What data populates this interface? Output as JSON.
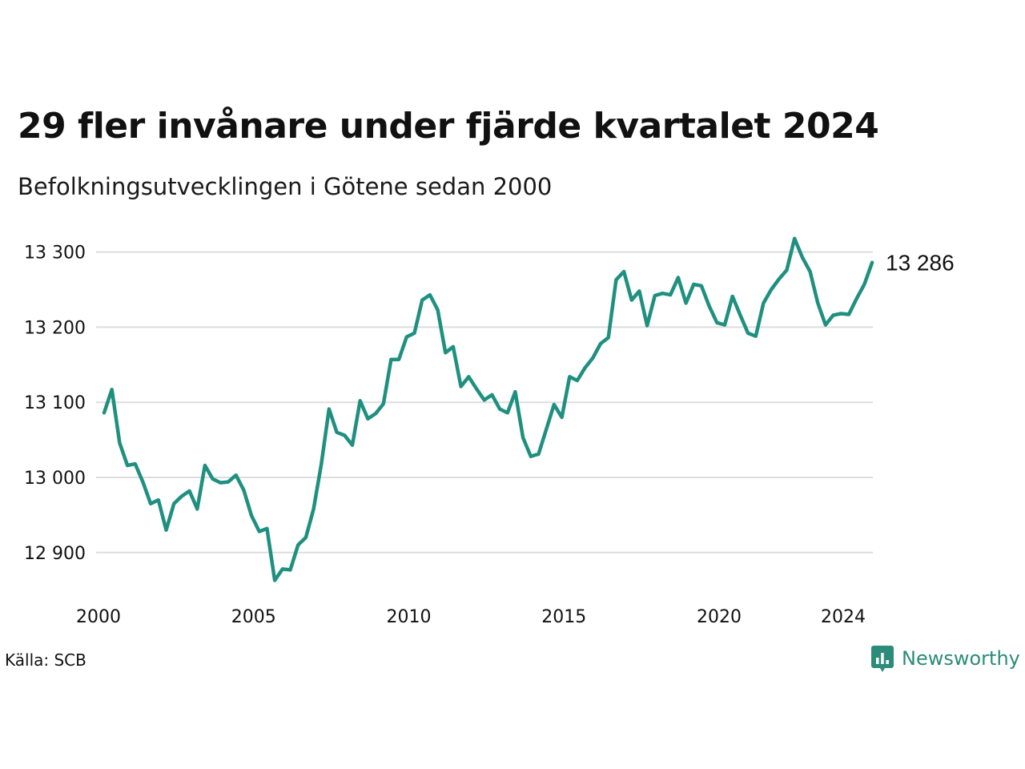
{
  "title": "29 fler invånare under fjärde kvartalet 2024",
  "subtitle": "Befolkningsutvecklingen i Götene sedan 2000",
  "source": "Källa: SCB",
  "brand": {
    "name": "Newsworthy",
    "icon": "newsworthy-logo-icon",
    "color": "#2b8c79"
  },
  "colors": {
    "line": "#1f9080",
    "grid": "#dddddd",
    "text": "#111111"
  },
  "chart_data": {
    "type": "line",
    "title": "29 fler invånare under fjärde kvartalet 2024",
    "subtitle": "Befolkningsutvecklingen i Götene sedan 2000",
    "xlabel": "",
    "ylabel": "",
    "xlim": [
      2000,
      2025
    ],
    "ylim": [
      12850,
      13330
    ],
    "x_ticks": [
      2000,
      2005,
      2010,
      2015,
      2020,
      2024
    ],
    "x_tick_labels": [
      "2000",
      "2005",
      "2010",
      "2015",
      "2020",
      "2024"
    ],
    "y_ticks": [
      12900,
      13000,
      13100,
      13200,
      13300
    ],
    "y_tick_labels": [
      "12 900",
      "13 000",
      "13 100",
      "13 200",
      "13 300"
    ],
    "grid": "horizontal",
    "legend": "none",
    "end_label": "13 286",
    "x": [
      2000.0,
      2000.25,
      2000.5,
      2000.75,
      2001.0,
      2001.25,
      2001.5,
      2001.75,
      2002.0,
      2002.25,
      2002.5,
      2002.75,
      2003.0,
      2003.25,
      2003.5,
      2003.75,
      2004.0,
      2004.25,
      2004.5,
      2004.75,
      2005.0,
      2005.25,
      2005.5,
      2005.75,
      2006.0,
      2006.25,
      2006.5,
      2006.75,
      2007.0,
      2007.25,
      2007.5,
      2007.75,
      2008.0,
      2008.25,
      2008.5,
      2008.75,
      2009.0,
      2009.25,
      2009.5,
      2009.75,
      2010.0,
      2010.25,
      2010.5,
      2010.75,
      2011.0,
      2011.25,
      2011.5,
      2011.75,
      2012.0,
      2012.25,
      2012.5,
      2012.75,
      2013.0,
      2013.25,
      2013.5,
      2013.75,
      2014.0,
      2014.25,
      2014.5,
      2014.75,
      2015.0,
      2015.25,
      2015.5,
      2015.75,
      2016.0,
      2016.25,
      2016.5,
      2016.75,
      2017.0,
      2017.25,
      2017.5,
      2017.75,
      2018.0,
      2018.25,
      2018.5,
      2018.75,
      2019.0,
      2019.25,
      2019.5,
      2019.75,
      2020.0,
      2020.25,
      2020.5,
      2020.75,
      2021.0,
      2021.25,
      2021.5,
      2021.75,
      2022.0,
      2022.25,
      2022.5,
      2022.75,
      2023.0,
      2023.25,
      2023.5,
      2023.75,
      2024.0,
      2024.25,
      2024.5,
      2024.75
    ],
    "series": [
      {
        "values": [
          13086,
          13117,
          13046,
          13016,
          13018,
          12994,
          12965,
          12970,
          12930,
          12965,
          12975,
          12982,
          12958,
          13016,
          12998,
          12993,
          12994,
          13003,
          12983,
          12949,
          12928,
          12932,
          12863,
          12878,
          12877,
          12910,
          12920,
          12958,
          13018,
          13091,
          13060,
          13056,
          13043,
          13102,
          13078,
          13085,
          13098,
          13157,
          13157,
          13187,
          13192,
          13236,
          13243,
          13223,
          13166,
          13174,
          13121,
          13134,
          13118,
          13103,
          13110,
          13091,
          13086,
          13114,
          13053,
          13028,
          13031,
          13064,
          13097,
          13080,
          13134,
          13129,
          13146,
          13159,
          13178,
          13186,
          13263,
          13274,
          13236,
          13248,
          13202,
          13242,
          13245,
          13243,
          13266,
          13232,
          13257,
          13255,
          13228,
          13206,
          13203,
          13241,
          13216,
          13192,
          13188,
          13232,
          13250,
          13264,
          13276,
          13318,
          13293,
          13274,
          13232,
          13203,
          13216,
          13218,
          13217,
          13238,
          13257,
          13286
        ]
      }
    ]
  }
}
